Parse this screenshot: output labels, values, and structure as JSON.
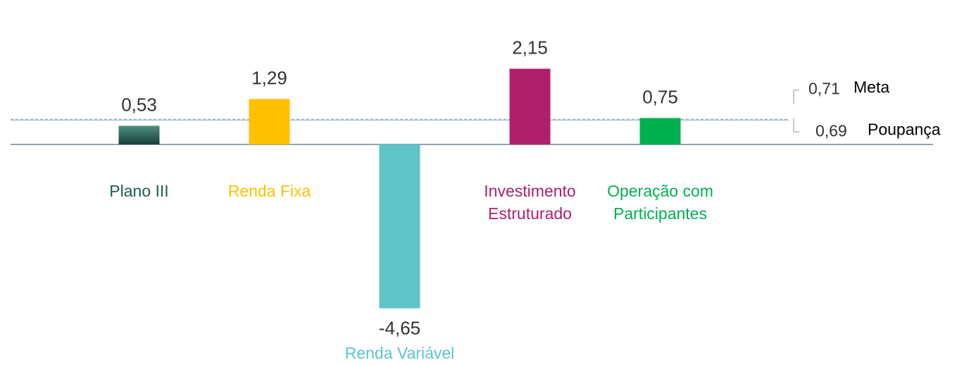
{
  "chart_data": {
    "type": "bar",
    "categories": [
      "Plano III",
      "Renda Fixa",
      "Renda Variável",
      "Investimento Estruturado",
      "Operação com Participantes"
    ],
    "values": [
      0.53,
      1.29,
      -4.65,
      2.15,
      0.75
    ],
    "value_labels": [
      "0,53",
      "1,29",
      "-4,65",
      "2,15",
      "0,75"
    ],
    "colors": [
      "#1f5c50",
      "#ffc000",
      "#5ec4c8",
      "#b0206a",
      "#00b050"
    ],
    "ylim": [
      -5.5,
      3.0
    ],
    "reference_lines": [
      {
        "name": "Meta",
        "value": 0.71,
        "value_label": "0,71",
        "color": "#9aa6ad"
      },
      {
        "name": "Poupança",
        "value": 0.69,
        "value_label": "0,69",
        "color": "#a9c4d6"
      }
    ]
  }
}
